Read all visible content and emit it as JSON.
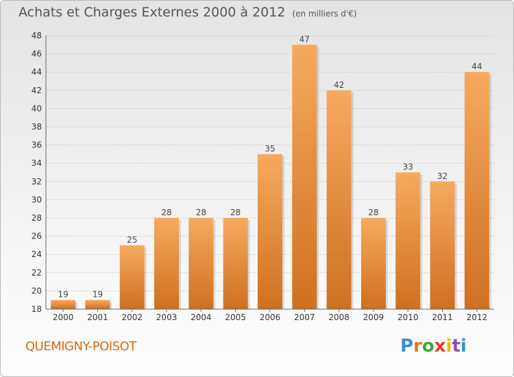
{
  "title": {
    "main": "Achats et Charges Externes 2000 à 2012",
    "unit": "(en milliers d'€)"
  },
  "footer": {
    "commune": "QUEMIGNY-POISOT",
    "logo_letters": [
      "P",
      "r",
      "o",
      "x",
      "i",
      "t",
      "i"
    ],
    "logo_colors": [
      "#3a8fd8",
      "#e8741e",
      "#3aaa35",
      "#e23d2a",
      "#f2b400",
      "#8b4fb3",
      "#3a8fd8"
    ]
  },
  "colors": {
    "bar": "#ef9540",
    "bar_light": "#f6aa5e",
    "bar_dark": "#cf7020",
    "grid": "#c7c7c7",
    "axis": "#666666"
  },
  "chart_data": {
    "type": "bar",
    "title": "Achats et Charges Externes 2000 à 2012",
    "subtitle": "(en milliers d'€)",
    "xlabel": "",
    "ylabel": "",
    "categories": [
      "2000",
      "2001",
      "2002",
      "2003",
      "2004",
      "2005",
      "2006",
      "2007",
      "2008",
      "2009",
      "2010",
      "2011",
      "2012"
    ],
    "values": [
      19,
      19,
      25,
      28,
      28,
      28,
      35,
      47,
      42,
      28,
      33,
      32,
      44
    ],
    "ylim": [
      18,
      48
    ],
    "yticks": [
      18,
      20,
      22,
      24,
      26,
      28,
      30,
      32,
      34,
      36,
      38,
      40,
      42,
      44,
      46,
      48
    ],
    "grid": true,
    "legend": "none"
  }
}
